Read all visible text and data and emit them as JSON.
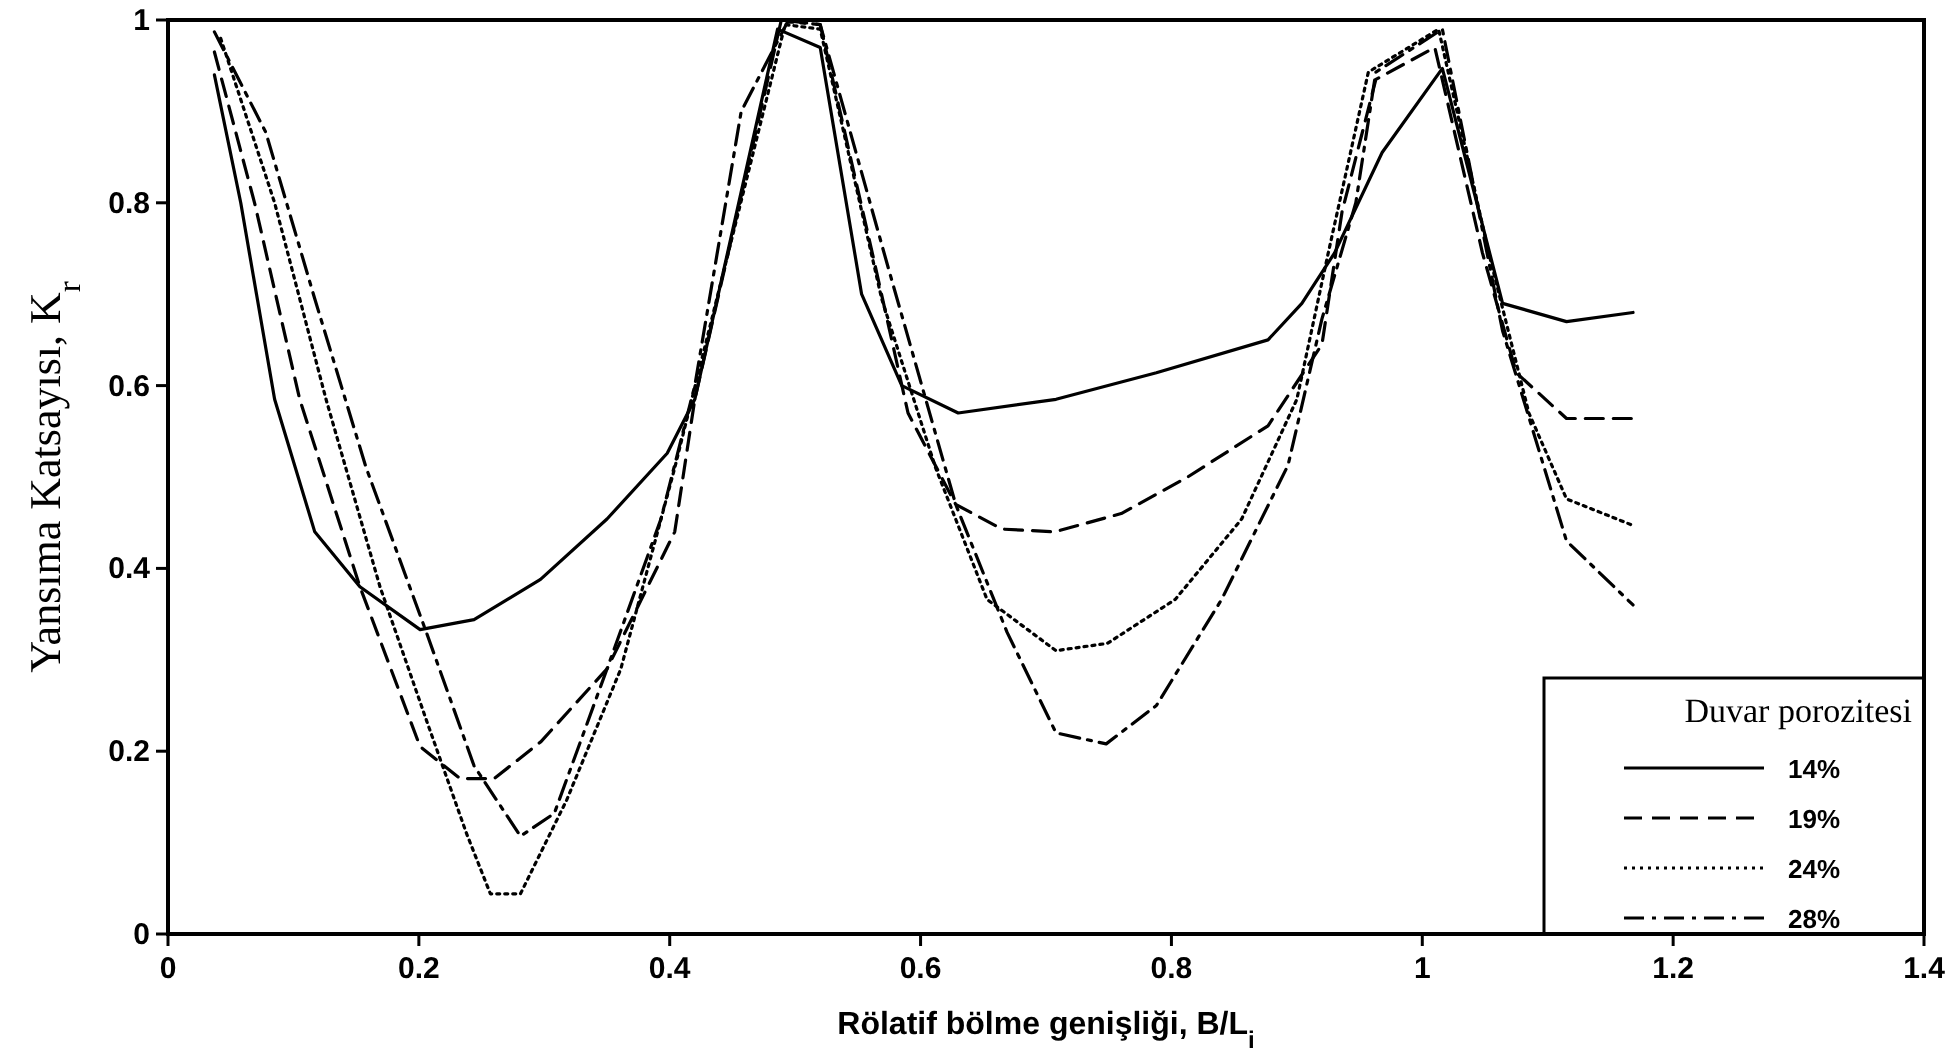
{
  "chart_data": {
    "type": "line",
    "xlabel": "Rölatif bölme genişliği, B/L$_{i}$",
    "ylabel": "Yansıma Katsayısı, K$_{r}$",
    "legend_title": "Duvar porozitesi",
    "legend": "bottom right",
    "grid": false,
    "marker": "none",
    "xlim": [
      0,
      1.4
    ],
    "ylim": [
      0,
      1
    ],
    "xticks": [
      0,
      0.2,
      0.4,
      0.6,
      0.8,
      1,
      1.2,
      1.4
    ],
    "yticks": [
      0,
      0.2,
      0.4,
      0.6,
      0.8,
      1
    ],
    "series": [
      {
        "name": "14%",
        "color": "#000000",
        "line_style": "solid",
        "x": [
          0.037,
          0.058,
          0.085,
          0.117,
          0.153,
          0.201,
          0.244,
          0.297,
          0.35,
          0.398,
          0.42,
          0.486,
          0.52,
          0.553,
          0.585,
          0.63,
          0.708,
          0.788,
          0.877,
          0.904,
          0.93,
          0.968,
          1.016,
          1.064,
          1.115,
          1.168
        ],
        "values": [
          0.94,
          0.8,
          0.585,
          0.44,
          0.38,
          0.333,
          0.344,
          0.388,
          0.454,
          0.526,
          0.585,
          0.99,
          0.97,
          0.7,
          0.6,
          0.57,
          0.585,
          0.614,
          0.65,
          0.69,
          0.745,
          0.855,
          0.947,
          0.69,
          0.67,
          0.68
        ]
      },
      {
        "name": "19%",
        "color": "#000000",
        "line_style": "dashed",
        "x": [
          0.037,
          0.069,
          0.105,
          0.153,
          0.201,
          0.233,
          0.26,
          0.297,
          0.35,
          0.404,
          0.42,
          0.489,
          0.52,
          0.564,
          0.59,
          0.628,
          0.665,
          0.707,
          0.76,
          0.813,
          0.877,
          0.92,
          0.936,
          0.963,
          1.01,
          1.048,
          1.075,
          1.115,
          1.168
        ],
        "values": [
          0.965,
          0.8,
          0.585,
          0.38,
          0.205,
          0.17,
          0.17,
          0.21,
          0.29,
          0.44,
          0.585,
          1,
          0.995,
          0.73,
          0.57,
          0.47,
          0.443,
          0.44,
          0.46,
          0.5,
          0.556,
          0.645,
          0.79,
          0.935,
          0.97,
          0.745,
          0.614,
          0.564,
          0.564
        ]
      },
      {
        "name": "24%",
        "color": "#000000",
        "line_style": "dotted",
        "x": [
          0.042,
          0.085,
          0.126,
          0.169,
          0.206,
          0.238,
          0.257,
          0.281,
          0.318,
          0.361,
          0.404,
          0.492,
          0.52,
          0.569,
          0.612,
          0.653,
          0.708,
          0.749,
          0.803,
          0.856,
          0.9,
          0.925,
          0.957,
          1.013,
          1.053,
          1.085,
          1.115,
          1.168
        ],
        "values": [
          0.98,
          0.8,
          0.585,
          0.38,
          0.234,
          0.11,
          0.044,
          0.044,
          0.147,
          0.29,
          0.51,
          0.995,
          0.99,
          0.695,
          0.51,
          0.366,
          0.31,
          0.318,
          0.366,
          0.454,
          0.585,
          0.745,
          0.943,
          0.99,
          0.745,
          0.57,
          0.476,
          0.447
        ]
      },
      {
        "name": "28%",
        "color": "#000000",
        "line_style": "dashdot",
        "x": [
          0.037,
          0.078,
          0.117,
          0.158,
          0.206,
          0.244,
          0.281,
          0.308,
          0.35,
          0.393,
          0.42,
          0.457,
          0.494,
          0.52,
          0.574,
          0.628,
          0.669,
          0.708,
          0.748,
          0.788,
          0.84,
          0.893,
          0.92,
          0.947,
          0.963,
          1.016,
          1.064,
          1.115,
          1.168
        ],
        "values": [
          0.987,
          0.877,
          0.695,
          0.51,
          0.33,
          0.184,
          0.107,
          0.132,
          0.29,
          0.454,
          0.6,
          0.9,
          0.998,
          0.995,
          0.73,
          0.47,
          0.33,
          0.22,
          0.208,
          0.25,
          0.366,
          0.513,
          0.673,
          0.8,
          0.943,
          0.99,
          0.66,
          0.43,
          0.36
        ]
      }
    ]
  }
}
